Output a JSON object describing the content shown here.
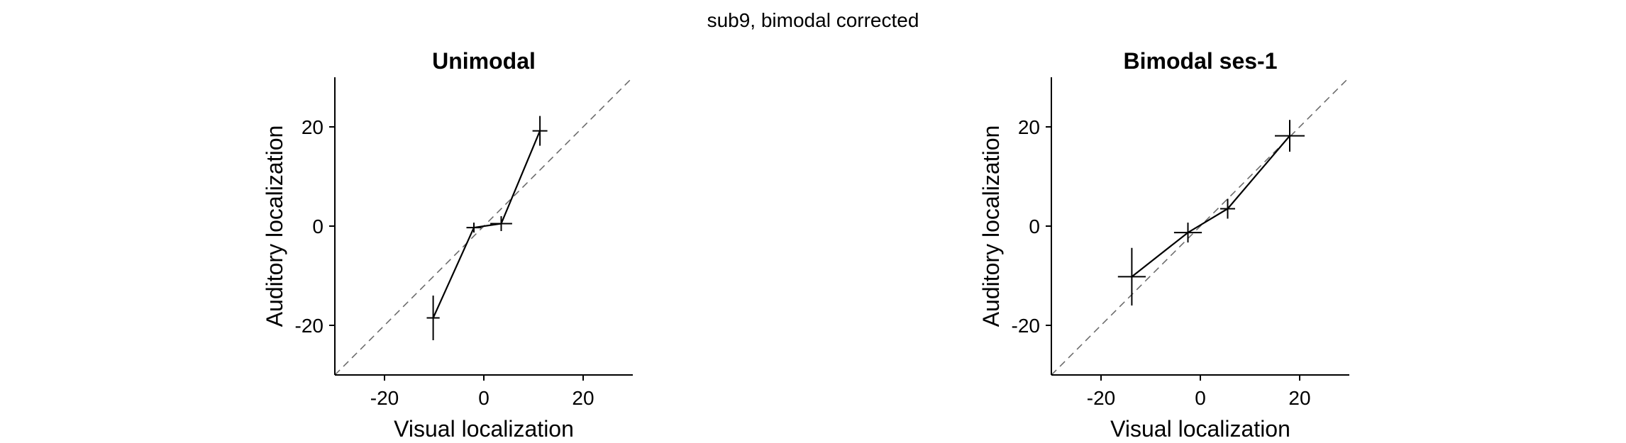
{
  "figure": {
    "suptitle": "sub9, bimodal corrected"
  },
  "chart_data": [
    {
      "type": "line",
      "title": "Unimodal",
      "xlabel": "Visual localization",
      "ylabel": "Auditory localization",
      "xlim": [
        -30,
        30
      ],
      "ylim": [
        -30,
        30
      ],
      "xticks": [
        -20,
        0,
        20
      ],
      "xtick_labels": [
        "-20",
        "0",
        "20"
      ],
      "yticks": [
        -20,
        0,
        20
      ],
      "ytick_labels": [
        "-20",
        "0",
        "20"
      ],
      "grid": false,
      "identity_line": true,
      "series": [
        {
          "points": [
            {
              "x": -10.2,
              "y": -18.5,
              "xerr": 1.3,
              "yerr": 4.5
            },
            {
              "x": -2.0,
              "y": -0.3,
              "xerr": 1.5,
              "yerr": 1.0
            },
            {
              "x": 3.5,
              "y": 0.5,
              "xerr": 2.2,
              "yerr": 1.5
            },
            {
              "x": 11.3,
              "y": 19.2,
              "xerr": 1.5,
              "yerr": 3.0
            }
          ]
        }
      ]
    },
    {
      "type": "line",
      "title": "Bimodal ses-1",
      "xlabel": "Visual localization",
      "ylabel": "Auditory localization",
      "xlim": [
        -30,
        30
      ],
      "ylim": [
        -30,
        30
      ],
      "xticks": [
        -20,
        0,
        20
      ],
      "xtick_labels": [
        "-20",
        "0",
        "20"
      ],
      "yticks": [
        -20,
        0,
        20
      ],
      "ytick_labels": [
        "-20",
        "0",
        "20"
      ],
      "grid": false,
      "identity_line": true,
      "series": [
        {
          "points": [
            {
              "x": -13.8,
              "y": -10.2,
              "xerr": 2.8,
              "yerr": 5.8
            },
            {
              "x": -2.5,
              "y": -1.3,
              "xerr": 2.8,
              "yerr": 2.0
            },
            {
              "x": 5.5,
              "y": 3.5,
              "xerr": 1.5,
              "yerr": 2.0
            },
            {
              "x": 18.0,
              "y": 18.2,
              "xerr": 3.0,
              "yerr": 3.2
            }
          ]
        }
      ]
    }
  ]
}
